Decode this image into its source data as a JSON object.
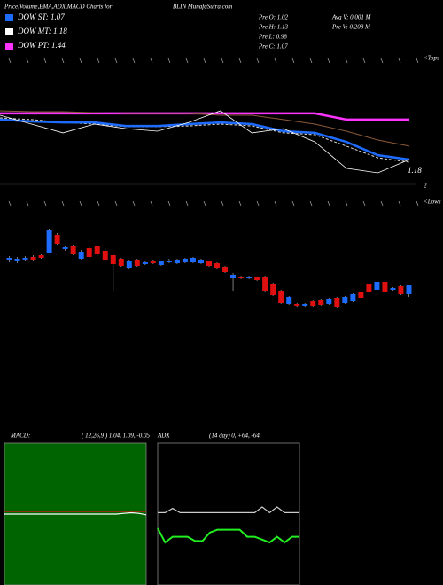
{
  "header": {
    "title": "Price,Volume,EMA,ADX,MACD Charts for",
    "site": "BLIN MunafaSutra.com",
    "legend": [
      {
        "text": "DOW ST: 1.07",
        "color": "#1e6bff"
      },
      {
        "text": "DOW MT: 1.18",
        "color": "#ffffff"
      },
      {
        "text": "DOW PT: 1.44",
        "color": "#ff33ff"
      }
    ],
    "info": [
      "Pre  O: 1.02",
      "Pre  H: 1.13",
      "Pre  L: 0.98",
      "Pre  C: 1.07"
    ],
    "volume": [
      "Avg  V: 0.001 M",
      "Pre   V: 0.208 M"
    ],
    "tops": "<Tops",
    "lows": "<Lows",
    "price_label": "1.18",
    "side_label": "2",
    "macd_label": "MACD:",
    "macd_params": "( 12,26,9 ) 1.04, 1.09, -0.05",
    "adx_label": "ADX",
    "adx_params": "(14  day) 0, +64, -64"
  },
  "chart_data": [
    {
      "type": "line",
      "ylim": [
        1.085,
        1.605
      ],
      "series": [
        {
          "color": "#ff33ff",
          "values": [
            1.473,
            1.473,
            1.473,
            1.473,
            1.473,
            1.473,
            1.473,
            1.473,
            1.473,
            1.473,
            1.473,
            1.44,
            1.44,
            1.44
          ]
        },
        {
          "color": "#8a5a3a",
          "values": [
            1.487,
            1.482,
            1.482,
            1.477,
            1.473,
            1.473,
            1.473,
            1.463,
            1.463,
            1.44,
            1.416,
            1.378,
            1.331,
            1.298
          ]
        },
        {
          "color": "#dddddd",
          "values": [
            1.449,
            1.44,
            1.425,
            1.416,
            1.402,
            1.402,
            1.406,
            1.416,
            1.406,
            1.369,
            1.359,
            1.298,
            1.236,
            1.213
          ]
        },
        {
          "color": "#1e6bff",
          "values": [
            1.44,
            1.43,
            1.425,
            1.425,
            1.406,
            1.406,
            1.416,
            1.425,
            1.416,
            1.378,
            1.369,
            1.321,
            1.25,
            1.227
          ]
        },
        {
          "color": "#ffffff",
          "values": [
            1.463,
            1.416,
            1.369,
            1.416,
            1.392,
            1.378,
            1.425,
            1.487,
            1.369,
            1.392,
            1.321,
            1.18,
            1.156,
            1.227
          ]
        }
      ]
    },
    {
      "type": "candlestick",
      "ylim": [
        0.9,
        1.4
      ],
      "up_color": "#1e6bff",
      "down_color": "#e01010",
      "open": [
        1.21,
        1.205,
        1.21,
        1.225,
        1.235,
        1.25,
        1.35,
        1.27,
        1.285,
        1.215,
        1.275,
        1.285,
        1.26,
        1.235,
        1.215,
        1.165,
        1.21,
        1.185,
        1.2,
        1.18,
        1.195,
        1.19,
        1.195,
        1.195,
        1.19,
        1.2,
        1.19,
        1.17,
        1.105,
        1.115,
        1.105,
        1.11,
        1.115,
        1.075,
        1.035,
        0.96,
        0.96,
        0.95,
        0.975,
        0.985,
        0.96,
        0.995,
        0.965,
        0.975,
        1.025,
        1.075,
        1.04,
        1.085,
        1.04,
        1.06,
        1.015
      ],
      "high": [
        1.23,
        1.225,
        1.23,
        1.235,
        1.24,
        1.385,
        1.36,
        1.29,
        1.295,
        1.265,
        1.285,
        1.29,
        1.27,
        1.24,
        1.22,
        1.21,
        1.215,
        1.205,
        1.21,
        1.205,
        1.215,
        1.215,
        1.22,
        1.225,
        1.215,
        1.205,
        1.195,
        1.175,
        1.135,
        1.12,
        1.12,
        1.115,
        1.12,
        1.08,
        1.04,
        1.005,
        0.965,
        0.965,
        0.98,
        0.99,
        0.995,
        1.0,
        1.005,
        1.02,
        1.03,
        1.08,
        1.09,
        1.09,
        1.055,
        1.065,
        1.07
      ],
      "low": [
        1.195,
        1.19,
        1.2,
        1.205,
        1.215,
        1.245,
        1.295,
        1.26,
        1.235,
        1.21,
        1.22,
        1.23,
        1.205,
        1.035,
        1.17,
        1.16,
        1.17,
        1.18,
        1.185,
        1.175,
        1.19,
        1.185,
        1.19,
        1.19,
        1.185,
        1.17,
        1.16,
        1.135,
        1.035,
        1.1,
        1.1,
        1.09,
        1.03,
        1.005,
        0.96,
        0.955,
        0.945,
        0.945,
        0.945,
        0.95,
        0.955,
        0.94,
        0.96,
        0.97,
        0.99,
        1.02,
        1.035,
        1.02,
        1.035,
        1.01,
        1.0
      ],
      "close": [
        1.22,
        1.215,
        1.22,
        1.21,
        1.22,
        1.375,
        1.3,
        1.28,
        1.24,
        1.255,
        1.225,
        1.24,
        1.21,
        1.185,
        1.175,
        1.205,
        1.175,
        1.195,
        1.19,
        1.2,
        1.205,
        1.21,
        1.215,
        1.22,
        1.21,
        1.175,
        1.165,
        1.14,
        1.125,
        1.105,
        1.115,
        1.095,
        1.035,
        1.01,
        0.965,
        1.0,
        0.95,
        0.96,
        0.95,
        0.955,
        0.99,
        0.945,
        1.0,
        1.015,
        0.995,
        1.025,
        1.085,
        1.025,
        1.05,
        1.015,
        1.065
      ]
    },
    {
      "type": "line",
      "ylim": [
        0,
        2.1
      ],
      "background": "#006400",
      "series": [
        {
          "color": "#ffffff",
          "values": [
            1.05,
            1.05,
            1.05,
            1.05,
            1.05,
            1.05,
            1.05,
            1.05,
            1.05,
            1.05,
            1.05,
            1.05,
            1.05,
            1.05,
            1.05,
            1.05,
            1.06,
            1.07,
            1.06,
            1.04
          ]
        },
        {
          "color": "#e01010",
          "values": [
            1.09,
            1.09,
            1.09,
            1.09,
            1.09,
            1.09,
            1.09,
            1.09,
            1.09,
            1.09,
            1.09,
            1.09,
            1.09,
            1.09,
            1.09,
            1.09,
            1.09,
            1.09,
            1.09,
            1.09
          ]
        }
      ]
    },
    {
      "type": "line",
      "ylim": [
        0,
        100
      ],
      "background": "#000000",
      "series": [
        {
          "color": "#cccccc",
          "values": [
            51,
            51,
            54,
            51,
            51,
            51,
            51,
            51,
            51,
            51,
            51,
            51,
            51,
            51,
            55,
            51,
            55,
            51,
            51,
            51
          ]
        },
        {
          "color": "#22ee22",
          "values": [
            40,
            30,
            34,
            34,
            34,
            31,
            31,
            37,
            39,
            39,
            39,
            39,
            34,
            34,
            32,
            30,
            34,
            30,
            34,
            34
          ]
        }
      ]
    }
  ]
}
